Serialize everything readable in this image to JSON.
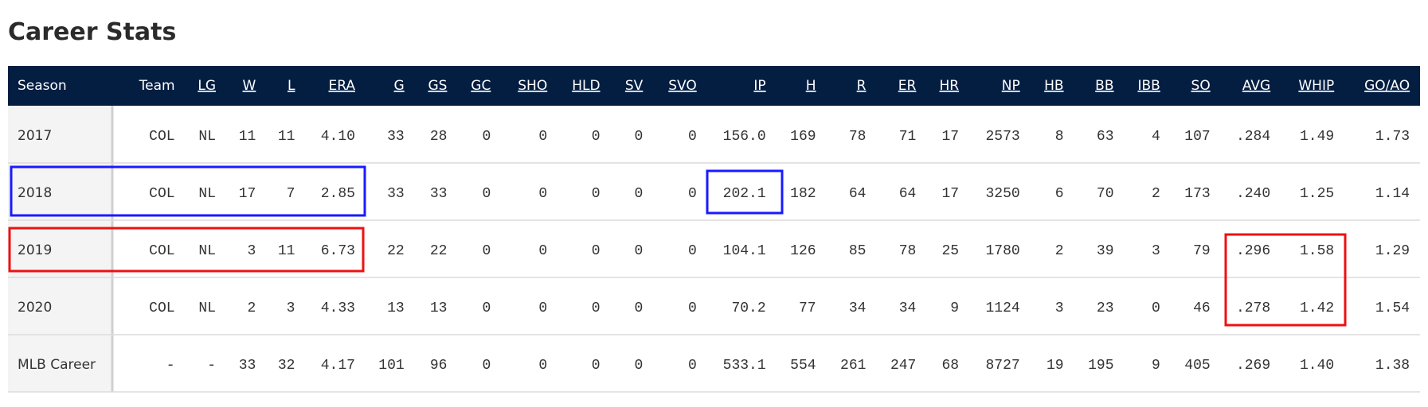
{
  "header": {
    "title": "Career Stats"
  },
  "table": {
    "columns": [
      "Season",
      "Team",
      "LG",
      "W",
      "L",
      "ERA",
      "G",
      "GS",
      "GC",
      "SHO",
      "HLD",
      "SV",
      "SVO",
      "IP",
      "H",
      "R",
      "ER",
      "HR",
      "NP",
      "HB",
      "BB",
      "IBB",
      "SO",
      "AVG",
      "WHIP",
      "GO/AO"
    ],
    "rows": [
      [
        "2017",
        "COL",
        "NL",
        "11",
        "11",
        "4.10",
        "33",
        "28",
        "0",
        "0",
        "0",
        "0",
        "0",
        "156.0",
        "169",
        "78",
        "71",
        "17",
        "2573",
        "8",
        "63",
        "4",
        "107",
        ".284",
        "1.49",
        "1.73"
      ],
      [
        "2018",
        "COL",
        "NL",
        "17",
        "7",
        "2.85",
        "33",
        "33",
        "0",
        "0",
        "0",
        "0",
        "0",
        "202.1",
        "182",
        "64",
        "64",
        "17",
        "3250",
        "6",
        "70",
        "2",
        "173",
        ".240",
        "1.25",
        "1.14"
      ],
      [
        "2019",
        "COL",
        "NL",
        "3",
        "11",
        "6.73",
        "22",
        "22",
        "0",
        "0",
        "0",
        "0",
        "0",
        "104.1",
        "126",
        "85",
        "78",
        "25",
        "1780",
        "2",
        "39",
        "3",
        "79",
        ".296",
        "1.58",
        "1.29"
      ],
      [
        "2020",
        "COL",
        "NL",
        "2",
        "3",
        "4.33",
        "13",
        "13",
        "0",
        "0",
        "0",
        "0",
        "0",
        "70.2",
        "77",
        "34",
        "34",
        "9",
        "1124",
        "3",
        "23",
        "0",
        "46",
        ".278",
        "1.42",
        "1.54"
      ],
      [
        "MLB Career",
        "-",
        "-",
        "33",
        "32",
        "4.17",
        "101",
        "96",
        "0",
        "0",
        "0",
        "0",
        "0",
        "533.1",
        "554",
        "261",
        "247",
        "68",
        "8727",
        "19",
        "195",
        "9",
        "405",
        ".269",
        "1.40",
        "1.38"
      ]
    ]
  }
}
